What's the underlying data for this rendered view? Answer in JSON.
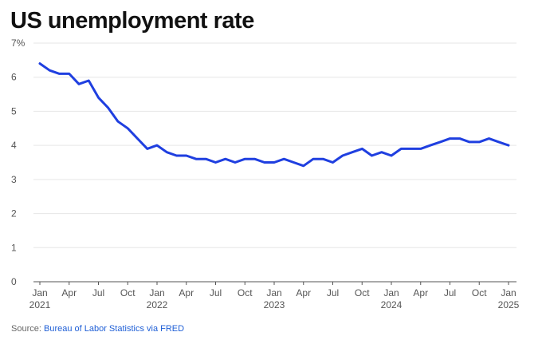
{
  "title": "US unemployment rate",
  "source": {
    "label": "Source:",
    "link_text": "Bureau of Labor Statistics via FRED"
  },
  "chart_data": {
    "type": "line",
    "title": "US unemployment rate",
    "xlabel": "",
    "ylabel": "",
    "unit": "%",
    "ylim": [
      0,
      7
    ],
    "y_ticks": [
      0,
      1,
      2,
      3,
      4,
      5,
      6,
      7
    ],
    "y_tick_labels": [
      "0",
      "1",
      "2",
      "3",
      "4",
      "5",
      "6",
      "7%"
    ],
    "x_range": [
      "2021-01",
      "2025-01"
    ],
    "x_ticks": [
      {
        "date": "2021-01",
        "label": "Jan",
        "year": "2021"
      },
      {
        "date": "2021-04",
        "label": "Apr",
        "year": ""
      },
      {
        "date": "2021-07",
        "label": "Jul",
        "year": ""
      },
      {
        "date": "2021-10",
        "label": "Oct",
        "year": ""
      },
      {
        "date": "2022-01",
        "label": "Jan",
        "year": "2022"
      },
      {
        "date": "2022-04",
        "label": "Apr",
        "year": ""
      },
      {
        "date": "2022-07",
        "label": "Jul",
        "year": ""
      },
      {
        "date": "2022-10",
        "label": "Oct",
        "year": ""
      },
      {
        "date": "2023-01",
        "label": "Jan",
        "year": "2023"
      },
      {
        "date": "2023-04",
        "label": "Apr",
        "year": ""
      },
      {
        "date": "2023-07",
        "label": "Jul",
        "year": ""
      },
      {
        "date": "2023-10",
        "label": "Oct",
        "year": ""
      },
      {
        "date": "2024-01",
        "label": "Jan",
        "year": "2024"
      },
      {
        "date": "2024-04",
        "label": "Apr",
        "year": ""
      },
      {
        "date": "2024-07",
        "label": "Jul",
        "year": ""
      },
      {
        "date": "2024-10",
        "label": "Oct",
        "year": ""
      },
      {
        "date": "2025-01",
        "label": "Jan",
        "year": "2025"
      }
    ],
    "grid": "horizontal",
    "line_color": "#1f3fe0",
    "series": [
      {
        "x": [
          "2021-01",
          "2021-02",
          "2021-03",
          "2021-04",
          "2021-05",
          "2021-06",
          "2021-07",
          "2021-08",
          "2021-09",
          "2021-10",
          "2021-11",
          "2021-12",
          "2022-01",
          "2022-02",
          "2022-03",
          "2022-04",
          "2022-05",
          "2022-06",
          "2022-07",
          "2022-08",
          "2022-09",
          "2022-10",
          "2022-11",
          "2022-12",
          "2023-01",
          "2023-02",
          "2023-03",
          "2023-04",
          "2023-05",
          "2023-06",
          "2023-07",
          "2023-08",
          "2023-09",
          "2023-10",
          "2023-11",
          "2023-12",
          "2024-01",
          "2024-02",
          "2024-03",
          "2024-04",
          "2024-05",
          "2024-06",
          "2024-07",
          "2024-08",
          "2024-09",
          "2024-10",
          "2024-11",
          "2024-12",
          "2025-01"
        ],
        "values": [
          6.4,
          6.2,
          6.1,
          6.1,
          5.8,
          5.9,
          5.4,
          5.1,
          4.7,
          4.5,
          4.2,
          3.9,
          4.0,
          3.8,
          3.7,
          3.7,
          3.6,
          3.6,
          3.5,
          3.6,
          3.5,
          3.6,
          3.6,
          3.5,
          3.5,
          3.6,
          3.5,
          3.4,
          3.6,
          3.6,
          3.5,
          3.7,
          3.8,
          3.9,
          3.7,
          3.8,
          3.7,
          3.9,
          3.9,
          3.9,
          4.0,
          4.1,
          4.2,
          4.2,
          4.1,
          4.1,
          4.2,
          4.1,
          4.0
        ]
      }
    ]
  }
}
